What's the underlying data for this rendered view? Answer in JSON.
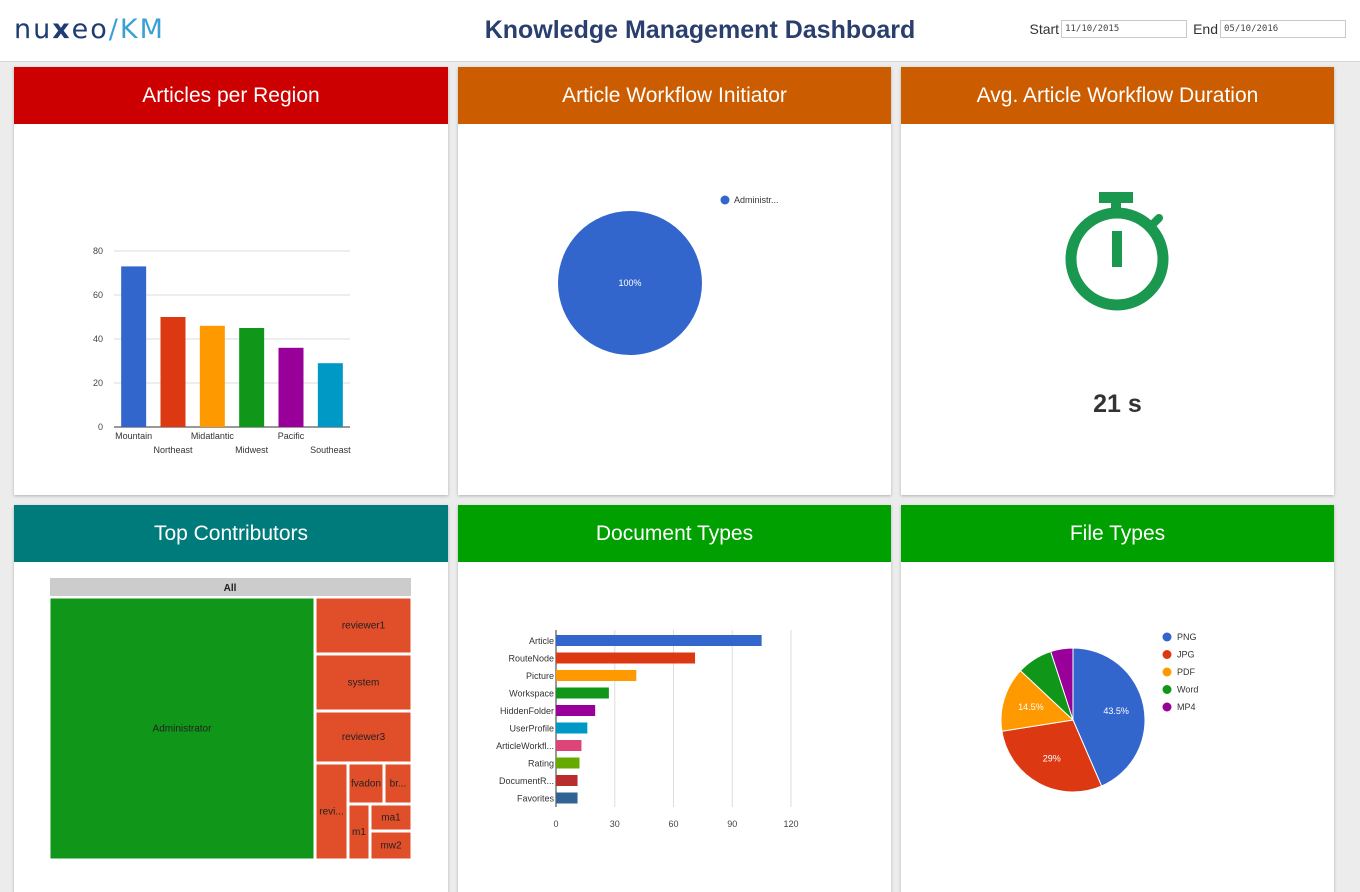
{
  "header": {
    "logo_main": "nu",
    "logo_x": "x",
    "logo_rest": "eo",
    "logo_sep": "/",
    "logo_km": "KM",
    "title": "Knowledge Management Dashboard",
    "start_label": "Start",
    "start_value": "11/10/2015",
    "end_label": "End",
    "end_value": "05/10/2016"
  },
  "cards": {
    "articles_region": {
      "title": "Articles per Region",
      "color": "#cc0000"
    },
    "workflow_initiator": {
      "title": "Article Workflow Initiator",
      "color": "#cc5c00"
    },
    "workflow_duration": {
      "title": "Avg. Article Workflow Duration",
      "color": "#cc5c00",
      "value": "21 s",
      "icon": "stopwatch-icon",
      "icon_color": "#1a9850"
    },
    "top_contributors": {
      "title": "Top Contributors",
      "color": "#007b7b"
    },
    "document_types": {
      "title": "Document Types",
      "color": "#00a000"
    },
    "file_types": {
      "title": "File Types",
      "color": "#00a000"
    }
  },
  "chart_data": [
    {
      "id": "articles_region",
      "type": "bar",
      "categories": [
        "Mountain",
        "Northeast",
        "Midatlantic",
        "Midwest",
        "Pacific",
        "Southeast"
      ],
      "values": [
        73,
        50,
        46,
        45,
        36,
        29
      ],
      "colors": [
        "#3366cc",
        "#dc3912",
        "#ff9900",
        "#109618",
        "#990099",
        "#0099c6"
      ],
      "yticks": [
        "0",
        "20",
        "40",
        "60",
        "80"
      ],
      "ylim": [
        0,
        80
      ],
      "grid": true
    },
    {
      "id": "workflow_initiator",
      "type": "pie",
      "labels": [
        "Administr..."
      ],
      "values": [
        100
      ],
      "slice_labels": [
        "100%"
      ],
      "colors": [
        "#3366cc"
      ],
      "legend": "top-right"
    },
    {
      "id": "top_contributors",
      "type": "treemap",
      "root_label": "All",
      "nodes": [
        "Administrator",
        "reviewer1",
        "system",
        "reviewer3",
        "revi...",
        "fvadon",
        "br...",
        "m1",
        "ma1",
        "mw2"
      ],
      "colors": {
        "large": "#109618",
        "small": "#e04e2a",
        "root": "#cccccc"
      }
    },
    {
      "id": "document_types",
      "type": "bar",
      "orientation": "horizontal",
      "categories": [
        "Article",
        "RouteNode",
        "Picture",
        "Workspace",
        "HiddenFolder",
        "UserProfile",
        "ArticleWorkfl...",
        "Rating",
        "DocumentR...",
        "Favorites"
      ],
      "values": [
        105,
        71,
        41,
        27,
        20,
        16,
        13,
        12,
        11,
        11
      ],
      "colors": [
        "#3366cc",
        "#dc3912",
        "#ff9900",
        "#109618",
        "#990099",
        "#0099c6",
        "#dd4477",
        "#66aa00",
        "#b82e2e",
        "#316395"
      ],
      "xticks": [
        "0",
        "30",
        "60",
        "90",
        "120"
      ],
      "xlim": [
        0,
        120
      ],
      "grid": true
    },
    {
      "id": "file_types",
      "type": "pie",
      "labels": [
        "PNG",
        "JPG",
        "PDF",
        "Word",
        "MP4"
      ],
      "values": [
        43.5,
        29,
        14.5,
        8,
        5
      ],
      "slice_labels": [
        "43.5%",
        "29%",
        "14.5%",
        "",
        ""
      ],
      "colors": [
        "#3366cc",
        "#dc3912",
        "#ff9900",
        "#109618",
        "#990099"
      ],
      "legend": "right"
    }
  ]
}
